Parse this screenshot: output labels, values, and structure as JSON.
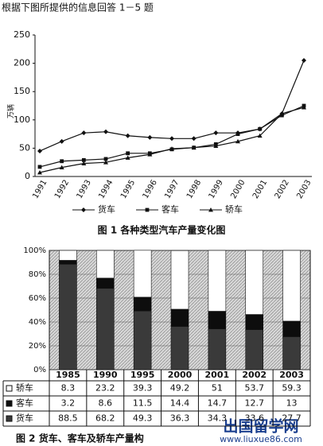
{
  "header": {
    "title": "根据下图所提供的信息回答 1－5 题"
  },
  "chart_data": [
    {
      "type": "line",
      "title": "图 1   各种类型汽车产量变化图",
      "y_label": "万辆",
      "categories": [
        "1991",
        "1992",
        "1993",
        "1994",
        "1995",
        "1996",
        "1997",
        "1998",
        "1999",
        "2000",
        "2001",
        "2002",
        "2003"
      ],
      "series": [
        {
          "name": "货车",
          "color": "#111111",
          "marker": "diamond",
          "values": [
            45,
            62,
            77,
            79,
            72,
            69,
            67,
            67,
            77,
            77,
            84,
            111,
            205
          ]
        },
        {
          "name": "客车",
          "color": "#111111",
          "marker": "square",
          "values": [
            17,
            27,
            29,
            31,
            41,
            41,
            48,
            51,
            57,
            75,
            84,
            108,
            125
          ]
        },
        {
          "name": "轿车",
          "color": "#111111",
          "marker": "triangle",
          "values": [
            7,
            16,
            23,
            25,
            33,
            39,
            49,
            51,
            54,
            62,
            72,
            111,
            122
          ]
        }
      ],
      "ylim": [
        0,
        250
      ],
      "yticks": [
        0,
        50,
        100,
        150,
        200,
        250
      ],
      "grid": false
    },
    {
      "type": "stacked_bar",
      "title": "图 2   货车、客车及轿车产量构",
      "categories": [
        "1985",
        "1990",
        "1995",
        "2000",
        "2001",
        "2002",
        "2003"
      ],
      "series": [
        {
          "name": "货车",
          "color": "#3a3a3a",
          "values": [
            88.5,
            68.2,
            49.3,
            36.3,
            34.3,
            33.6,
            27.7
          ]
        },
        {
          "name": "客车",
          "color": "#0d0d0d",
          "values": [
            3.2,
            8.6,
            11.5,
            14.4,
            14.7,
            12.7,
            13
          ]
        },
        {
          "name": "轿车",
          "color": "#ffffff",
          "values": [
            8.3,
            23.2,
            39.3,
            49.2,
            51,
            53.7,
            59.3
          ]
        }
      ],
      "ylim": [
        0,
        100
      ],
      "yticks": [
        {
          "value": 0,
          "label": "0%"
        },
        {
          "value": 20,
          "label": "20%"
        },
        {
          "value": 40,
          "label": "40%"
        },
        {
          "value": 60,
          "label": "60%"
        },
        {
          "value": 80,
          "label": "80%"
        },
        {
          "value": 100,
          "label": "100%"
        }
      ],
      "grid": true
    }
  ],
  "watermark": {
    "name": "出国留学网",
    "url": "www.liuxue86.com"
  }
}
